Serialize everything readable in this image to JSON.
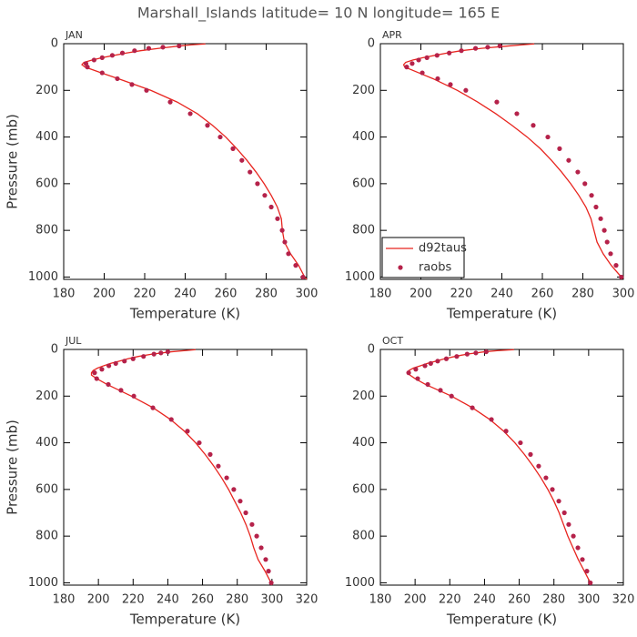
{
  "title": "Marshall_Islands  latitude= 10 N longitude= 165 E",
  "chart_data": [
    {
      "type": "line",
      "title": "JAN",
      "x_label": "Temperature (K)",
      "y_label": "Pressure (mb)",
      "xlim": [
        180,
        300
      ],
      "xticks": [
        180,
        200,
        220,
        240,
        260,
        280,
        300
      ],
      "ylim": [
        0,
        1010
      ],
      "y_inverted": true,
      "yticks": [
        0,
        200,
        400,
        600,
        800,
        1000
      ],
      "series": [
        {
          "name": "d92taus",
          "style": "line",
          "color": "#e8251f",
          "x": [
            300,
            299,
            296,
            292,
            289,
            288,
            287.5,
            285.5,
            282.5,
            279,
            275,
            270.5,
            265.5,
            260,
            253.5,
            246,
            236,
            223,
            207,
            198.5,
            190.5,
            189,
            190,
            194,
            199,
            205,
            211,
            218,
            227,
            237,
            243,
            250
          ],
          "values": [
            1010,
            1000,
            950,
            900,
            850,
            800,
            750,
            700,
            650,
            600,
            550,
            500,
            450,
            400,
            350,
            300,
            250,
            200,
            150,
            125,
            100,
            90,
            80,
            70,
            60,
            50,
            40,
            30,
            20,
            10,
            5,
            1
          ]
        },
        {
          "name": "raobs",
          "style": "markers",
          "color": "#b5224a",
          "x": [
            298.2,
            294.6,
            291,
            289.2,
            287.9,
            285.6,
            282.5,
            279.3,
            275.7,
            272,
            268,
            263.6,
            257.3,
            251,
            242.5,
            232.6,
            220.9,
            213.7,
            206.5,
            199,
            191.7,
            191,
            195,
            199,
            204,
            209,
            215,
            222,
            229,
            237
          ],
          "values": [
            1000,
            950,
            900,
            850,
            800,
            750,
            700,
            650,
            600,
            550,
            500,
            450,
            400,
            350,
            300,
            250,
            200,
            175,
            150,
            125,
            100,
            85,
            70,
            60,
            50,
            40,
            30,
            20,
            15,
            10
          ]
        }
      ]
    },
    {
      "type": "line",
      "title": "APR",
      "x_label": "Temperature (K)",
      "legend": "lower left",
      "xlim": [
        180,
        300
      ],
      "xticks": [
        180,
        200,
        220,
        240,
        260,
        280,
        300
      ],
      "ylim": [
        0,
        1010
      ],
      "y_inverted": true,
      "yticks": [
        0,
        200,
        400,
        600,
        800,
        1000
      ],
      "series": [
        {
          "name": "d92taus",
          "style": "line",
          "color": "#e8251f",
          "x": [
            300,
            299,
            294,
            290,
            287,
            285.5,
            284,
            281.5,
            278,
            274,
            269.5,
            264.5,
            259,
            252.5,
            245,
            237,
            228,
            218,
            206,
            199,
            192,
            191.5,
            192.5,
            196,
            201,
            207,
            213,
            220,
            230,
            243,
            250,
            256
          ],
          "values": [
            1005,
            1000,
            950,
            900,
            850,
            800,
            750,
            700,
            650,
            600,
            550,
            500,
            450,
            400,
            350,
            300,
            250,
            200,
            150,
            125,
            100,
            90,
            80,
            70,
            60,
            50,
            40,
            30,
            20,
            10,
            5,
            1
          ]
        },
        {
          "name": "raobs",
          "style": "markers",
          "color": "#b5224a",
          "x": [
            299,
            296.4,
            293.7,
            292,
            290.6,
            288.8,
            286.5,
            284.3,
            281,
            277.5,
            273,
            268.5,
            262.7,
            255.5,
            247.4,
            237.5,
            222.2,
            214.6,
            208.3,
            200.7,
            193,
            195.7,
            198.9,
            203,
            208,
            214,
            220,
            227,
            233,
            239
          ],
          "values": [
            1000,
            950,
            900,
            850,
            800,
            750,
            700,
            650,
            600,
            550,
            500,
            450,
            400,
            350,
            300,
            250,
            200,
            175,
            150,
            125,
            100,
            85,
            70,
            60,
            50,
            40,
            30,
            20,
            15,
            10
          ]
        }
      ]
    },
    {
      "type": "line",
      "title": "JUL",
      "x_label": "Temperature (K)",
      "y_label": "Pressure (mb)",
      "xlim": [
        180,
        320
      ],
      "xticks": [
        180,
        200,
        220,
        240,
        260,
        280,
        300,
        320
      ],
      "ylim": [
        0,
        1010
      ],
      "y_inverted": true,
      "yticks": [
        0,
        200,
        400,
        600,
        800,
        1000
      ],
      "series": [
        {
          "name": "d92taus",
          "style": "line",
          "color": "#e8251f",
          "x": [
            300,
            299.5,
            296,
            292,
            289.5,
            287.5,
            285,
            282,
            278.5,
            275,
            271,
            266.5,
            261.5,
            256,
            249.5,
            241.5,
            231.5,
            219,
            205,
            199,
            196,
            196,
            197,
            199.5,
            203,
            207,
            212,
            217,
            223,
            231,
            242,
            250,
            256
          ],
          "values": [
            1010,
            1000,
            950,
            900,
            850,
            800,
            750,
            700,
            650,
            600,
            550,
            500,
            450,
            400,
            350,
            300,
            250,
            200,
            150,
            125,
            110,
            100,
            90,
            80,
            70,
            60,
            50,
            40,
            30,
            20,
            10,
            5,
            1
          ]
        },
        {
          "name": "raobs",
          "style": "markers",
          "color": "#b5224a",
          "x": [
            299.6,
            298,
            296.4,
            293.8,
            291.2,
            288.5,
            284.9,
            281.7,
            278,
            273.9,
            269.1,
            264.4,
            258.1,
            251.3,
            242,
            231.4,
            220.4,
            213,
            205.7,
            199,
            197.8,
            202,
            206,
            210,
            215,
            220,
            226,
            232,
            236,
            240
          ],
          "values": [
            1000,
            950,
            900,
            850,
            800,
            750,
            700,
            650,
            600,
            550,
            500,
            450,
            400,
            350,
            300,
            250,
            200,
            175,
            150,
            125,
            100,
            85,
            70,
            60,
            50,
            40,
            30,
            20,
            15,
            10
          ]
        }
      ]
    },
    {
      "type": "line",
      "title": "OCT",
      "x_label": "Temperature (K)",
      "xlim": [
        180,
        320
      ],
      "xticks": [
        180,
        200,
        220,
        240,
        260,
        280,
        300,
        320
      ],
      "ylim": [
        0,
        1010
      ],
      "y_inverted": true,
      "yticks": [
        0,
        200,
        400,
        600,
        800,
        1000
      ],
      "series": [
        {
          "name": "d92taus",
          "style": "line",
          "color": "#e8251f",
          "x": [
            301,
            297.5,
            294,
            291,
            288,
            285.5,
            283,
            280,
            276.5,
            272.5,
            268,
            263,
            257.5,
            251,
            243,
            233,
            221,
            206,
            200,
            197,
            196,
            196.5,
            199,
            203,
            207,
            212,
            217,
            223,
            230,
            240,
            248,
            257
          ],
          "values": [
            1000,
            950,
            900,
            850,
            800,
            750,
            700,
            650,
            600,
            550,
            500,
            450,
            400,
            350,
            300,
            250,
            200,
            150,
            125,
            110,
            100,
            90,
            80,
            70,
            60,
            50,
            40,
            30,
            20,
            10,
            5,
            1
          ]
        },
        {
          "name": "raobs",
          "style": "markers",
          "color": "#b5224a",
          "x": [
            301,
            299,
            296.4,
            293.8,
            291.2,
            288.5,
            286,
            282.8,
            279.1,
            275.4,
            271.2,
            266.5,
            260.7,
            252.4,
            244,
            233,
            221,
            214.6,
            207.3,
            201.5,
            196.3,
            200.4,
            205.7,
            209,
            213,
            218,
            224,
            230,
            235,
            241
          ],
          "values": [
            1000,
            950,
            900,
            850,
            800,
            750,
            700,
            650,
            600,
            550,
            500,
            450,
            400,
            350,
            300,
            250,
            200,
            175,
            150,
            125,
            100,
            85,
            70,
            60,
            50,
            40,
            30,
            20,
            15,
            10
          ]
        }
      ]
    }
  ]
}
